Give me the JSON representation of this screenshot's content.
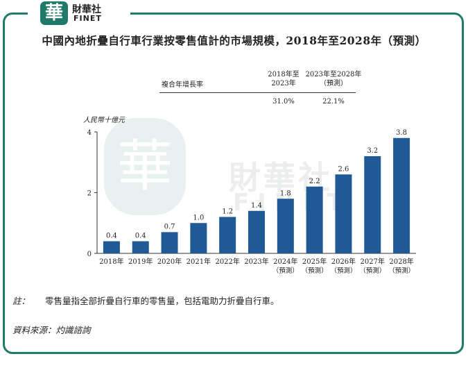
{
  "brand": {
    "logo_char": "華",
    "name": "財華社",
    "sub": "FINET"
  },
  "watermark": {
    "logo_char": "華",
    "name": "財華社",
    "sub": "FINET"
  },
  "title": "中國內地折疊自行車行業按零售值計的市場規模，2018年至2028年（預測）",
  "cagr": {
    "row_label": "複合年增長率",
    "periods": [
      {
        "header_line1": "2018年至",
        "header_line2": "2023年",
        "value": "31.0%"
      },
      {
        "header_line1": "2023年至2028年",
        "header_line2": "（預測）",
        "value": "22.1%"
      }
    ]
  },
  "unit_label": "人民幣十億元",
  "chart_data": {
    "type": "bar",
    "categories": [
      "2018年",
      "2019年",
      "2020年",
      "2021年",
      "2022年",
      "2023年",
      "2024年",
      "2025年",
      "2026年",
      "2027年",
      "2028年"
    ],
    "category_sublabels": [
      "",
      "",
      "",
      "",
      "",
      "",
      "（預測）",
      "（預測）",
      "（預測）",
      "（預測）",
      "（預測）"
    ],
    "values": [
      0.4,
      0.4,
      0.7,
      1.0,
      1.2,
      1.4,
      1.8,
      2.2,
      2.6,
      3.2,
      3.8
    ],
    "value_labels": [
      "0.4",
      "0.4",
      "0.7",
      "1.0",
      "1.2",
      "1.4",
      "1.8",
      "2.2",
      "2.6",
      "3.2",
      "3.8"
    ],
    "ylabel": "人民幣十億元",
    "ylim": [
      0,
      4
    ],
    "yticks": [
      0,
      2,
      4
    ],
    "grid": false,
    "bar_color": "#1f5a96"
  },
  "note": {
    "label": "註：",
    "text": "零售量指全部折疊自行車的零售量，包括電助力折疊自行車。"
  },
  "source": "資料來源：灼識諮詢"
}
